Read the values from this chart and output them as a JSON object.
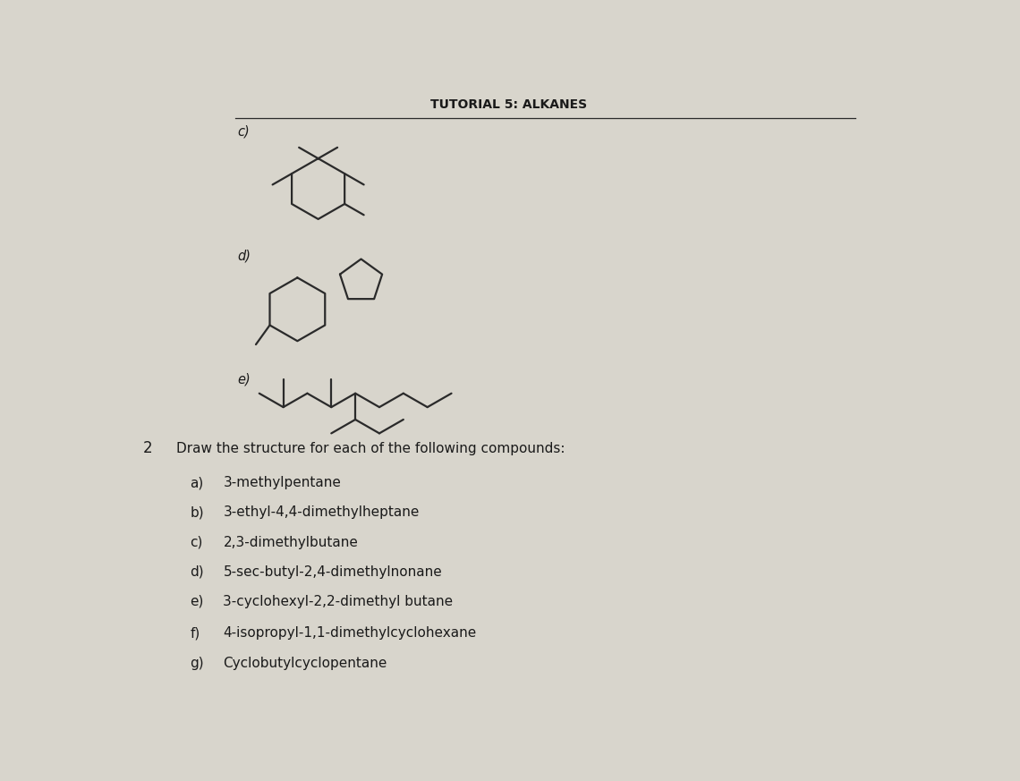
{
  "title": "TUTORIAL 5: ALKANES",
  "bg_color": "#d8d5cc",
  "line_color": "#2a2a2a",
  "text_color": "#1a1a1a",
  "line_width": 1.6,
  "font_size_title": 10,
  "font_size_label": 10.5,
  "font_size_text": 11,
  "section2_items": [
    {
      "letter": "a)",
      "text": "3-methylpentane"
    },
    {
      "letter": "b)",
      "text": "3-ethyl-4,4-dimethylheptane"
    },
    {
      "letter": "c)",
      "text": "2,3-dimethylbutane"
    },
    {
      "letter": "d)",
      "text": "5-sec-butyl-2,4-dimethylnonane"
    },
    {
      "letter": "e)",
      "text": "3-cyclohexyl-2,2-dimethyl butane"
    },
    {
      "letter": "f)",
      "text": "4-isopropyl-1,1-dimethylcyclohexane"
    },
    {
      "letter": "g)",
      "text": "Cyclobutylcyclopentane"
    }
  ]
}
